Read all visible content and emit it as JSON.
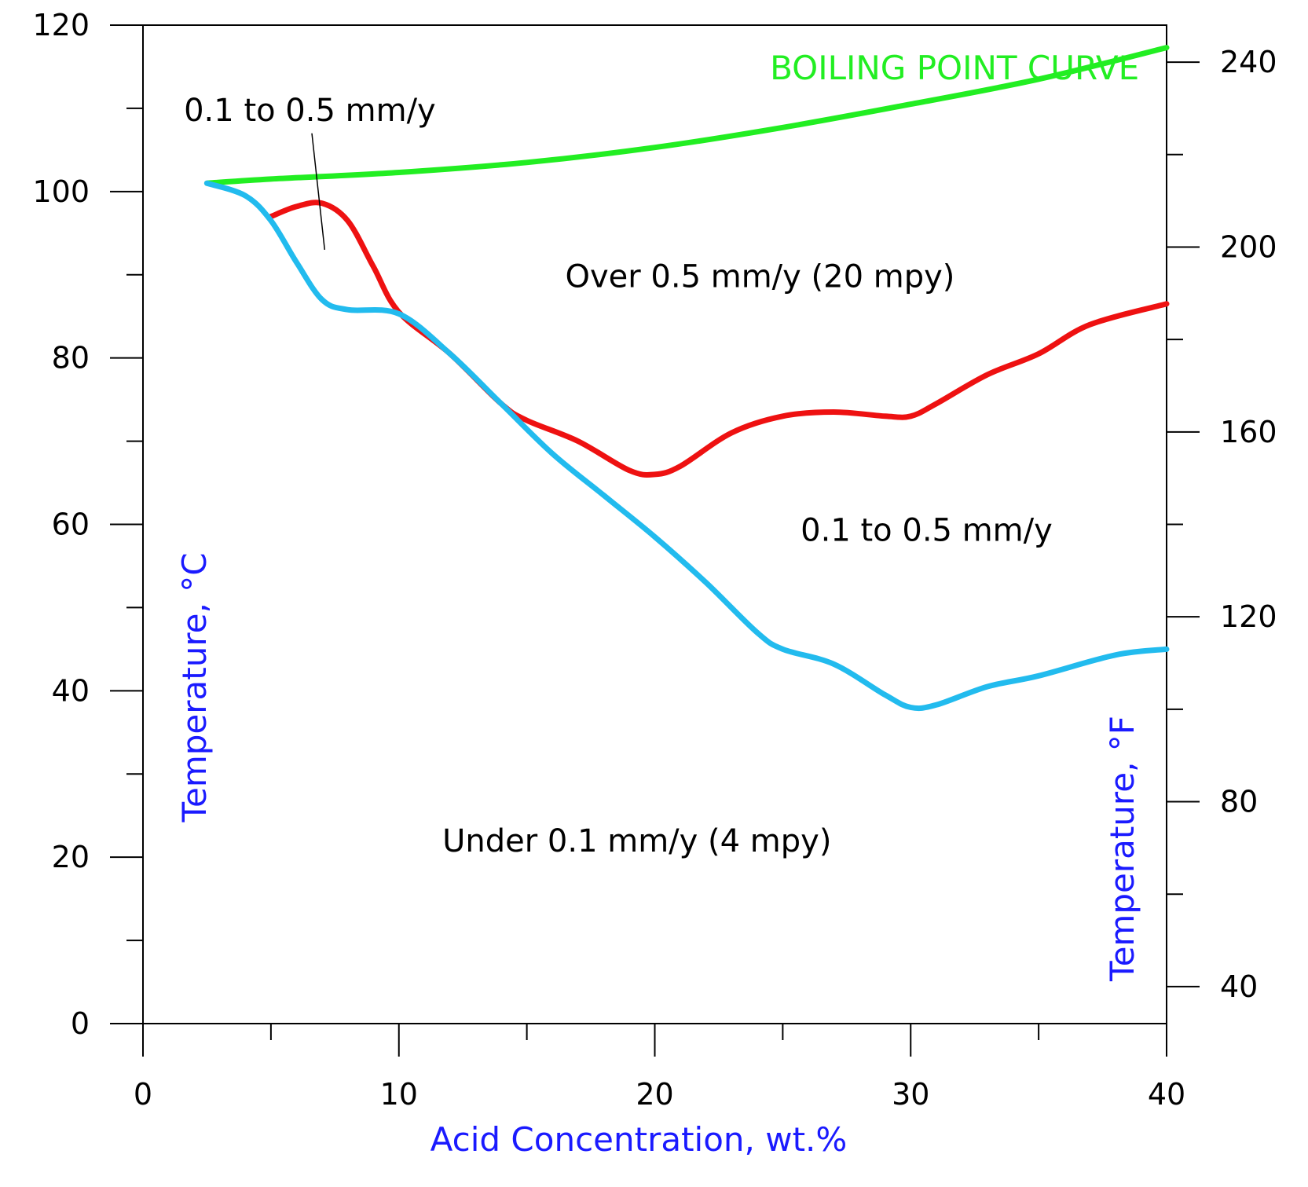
{
  "chart_data": {
    "type": "line",
    "title": "",
    "xlabel": "Acid Concentration, wt.%",
    "ylabel": "Temperature, °C",
    "y2label": "Temperature, °F",
    "xlim": [
      0,
      40
    ],
    "ylim": [
      0,
      120
    ],
    "y2lim": [
      32,
      248
    ],
    "x_ticks_major": [
      0,
      10,
      20,
      30,
      40
    ],
    "x_tick_labels": [
      "0",
      "10",
      "20",
      "30",
      "40"
    ],
    "x_ticks_minor": [
      5,
      15,
      25,
      35
    ],
    "y_ticks_major": [
      0,
      20,
      40,
      60,
      80,
      100,
      120
    ],
    "y_tick_labels": [
      "0",
      "20",
      "40",
      "60",
      "80",
      "100",
      "120"
    ],
    "y_ticks_minor": [
      10,
      30,
      50,
      70,
      90,
      110
    ],
    "y2_ticks_major": [
      40,
      80,
      120,
      160,
      200,
      240
    ],
    "y2_tick_labels": [
      "40",
      "80",
      "120",
      "160",
      "200",
      "240"
    ],
    "y2_ticks_minor": [
      60,
      100,
      140,
      180,
      220
    ],
    "grid": false,
    "series": [
      {
        "name": "BOILING POINT CURVE",
        "color": "#22ee22",
        "x": [
          2.5,
          5,
          10,
          15,
          20,
          25,
          30,
          35,
          40
        ],
        "y": [
          101,
          101.5,
          102.3,
          103.5,
          105.3,
          107.7,
          110.5,
          113.5,
          117.3
        ]
      },
      {
        "name": "",
        "color": "#ee1111",
        "x": [
          5,
          6,
          7,
          8,
          9,
          10,
          12,
          14,
          15,
          17,
          19,
          20,
          21,
          23,
          25,
          27,
          29,
          30,
          31,
          33,
          35,
          37,
          40
        ],
        "y": [
          97,
          98.2,
          98.6,
          96.5,
          91,
          85.5,
          80.5,
          74.5,
          72.5,
          70,
          66.5,
          66,
          67,
          71,
          73,
          73.5,
          73,
          73,
          74.5,
          78,
          80.5,
          84,
          86.5
        ]
      },
      {
        "name": "",
        "color": "#22bbee",
        "x": [
          2.5,
          4,
          5,
          6,
          7,
          8,
          10,
          12,
          14,
          16,
          18,
          20,
          22,
          24,
          25,
          27,
          29,
          30,
          31,
          33,
          35,
          38,
          40
        ],
        "y": [
          101,
          99.5,
          96.5,
          91.5,
          87,
          85.8,
          85.3,
          80.5,
          74.5,
          68.5,
          63.5,
          58.5,
          53,
          47,
          45,
          43.2,
          39.5,
          38,
          38.3,
          40.5,
          41.8,
          44.3,
          45
        ]
      }
    ],
    "annotations": [
      {
        "text": "BOILING POINT CURVE",
        "x": 24.5,
        "y": 113.5
      },
      {
        "text": "0.1 to 0.5 mm/y",
        "x": 1.6,
        "y": 108.5
      },
      {
        "text": "Over 0.5 mm/y (20 mpy)",
        "x": 16.5,
        "y": 88.5
      },
      {
        "text": "0.1 to 0.5 mm/y",
        "x": 25.7,
        "y": 58
      },
      {
        "text": "Under 0.1 mm/y (4 mpy)",
        "x": 11.7,
        "y": 20.7
      }
    ],
    "leader_line": {
      "from": [
        6.6,
        107
      ],
      "to": [
        7.1,
        93
      ]
    }
  }
}
